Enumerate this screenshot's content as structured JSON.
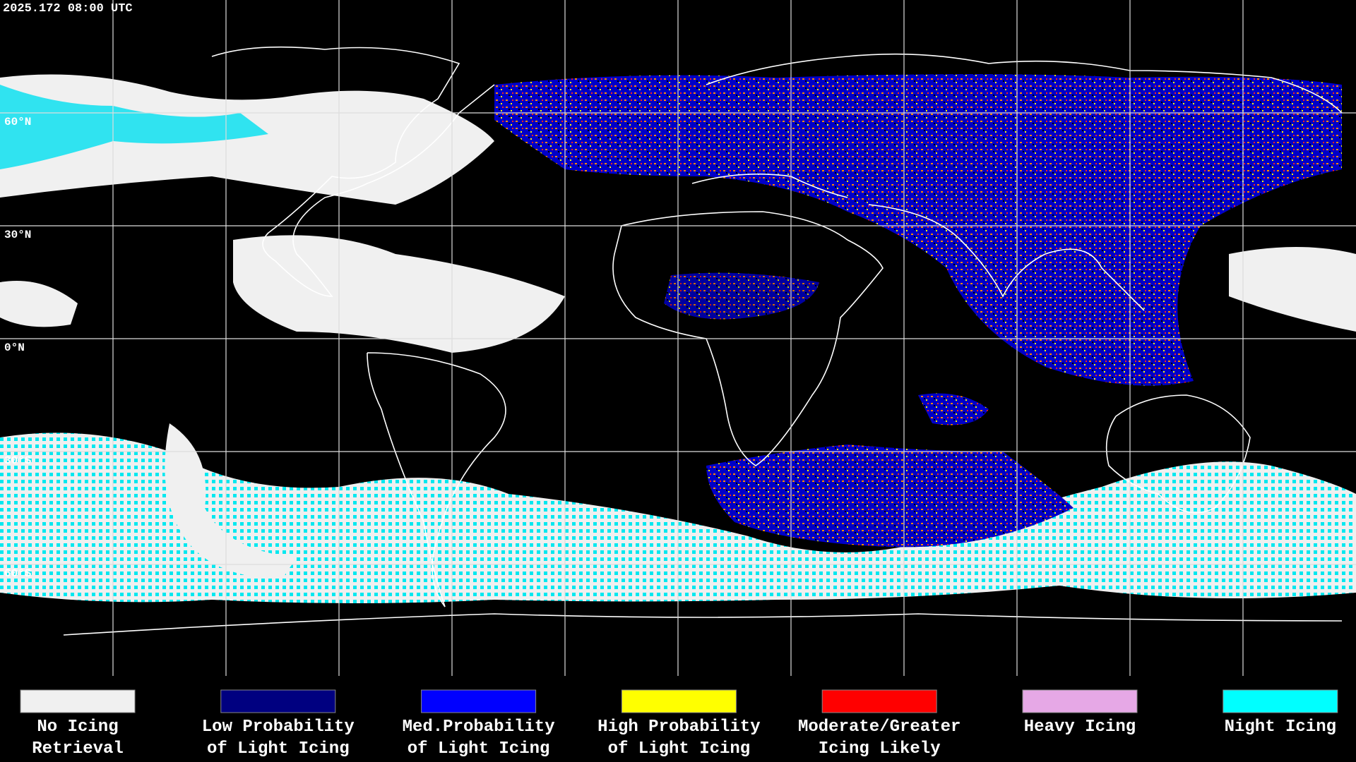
{
  "header": {
    "timestamp": "2025.172 08:00 UTC"
  },
  "latitude_labels": [
    "60°N",
    "30°N",
    "0°N",
    "30°S",
    "60°S"
  ],
  "legend": [
    {
      "lines": [
        "No Icing",
        "Retrieval"
      ],
      "color": "#f0f0f0"
    },
    {
      "lines": [
        "Low Probability",
        "of Light Icing"
      ],
      "color": "#000080"
    },
    {
      "lines": [
        "Med.Probability",
        "of Light Icing"
      ],
      "color": "#0000ff"
    },
    {
      "lines": [
        "High Probability",
        "of Light Icing"
      ],
      "color": "#ffff00"
    },
    {
      "lines": [
        "Moderate/Greater",
        "Icing Likely"
      ],
      "color": "#ff0000"
    },
    {
      "lines": [
        "Heavy Icing"
      ],
      "color": "#e6a8e6"
    },
    {
      "lines": [
        "Night Icing"
      ],
      "color": "#00ffff"
    }
  ]
}
